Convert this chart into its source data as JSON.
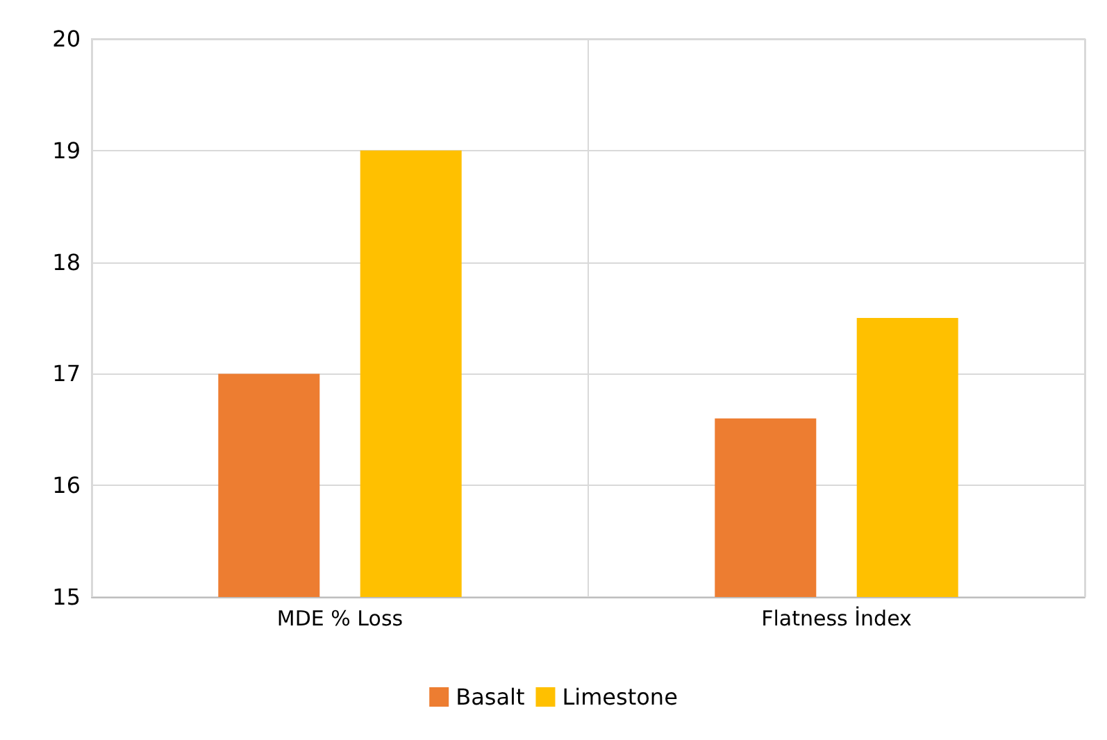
{
  "chart_data": {
    "type": "bar",
    "categories": [
      "MDE % Loss",
      "Flatness İndex"
    ],
    "series": [
      {
        "name": "Basalt",
        "color": "#ed7d31",
        "values": [
          17,
          16.6
        ]
      },
      {
        "name": "Limestone",
        "color": "#ffc000",
        "values": [
          19,
          17.5
        ]
      }
    ],
    "ylim": [
      15,
      20
    ],
    "yticks": [
      15,
      16,
      17,
      18,
      19,
      20
    ],
    "grid": true,
    "legend": "bottom"
  }
}
